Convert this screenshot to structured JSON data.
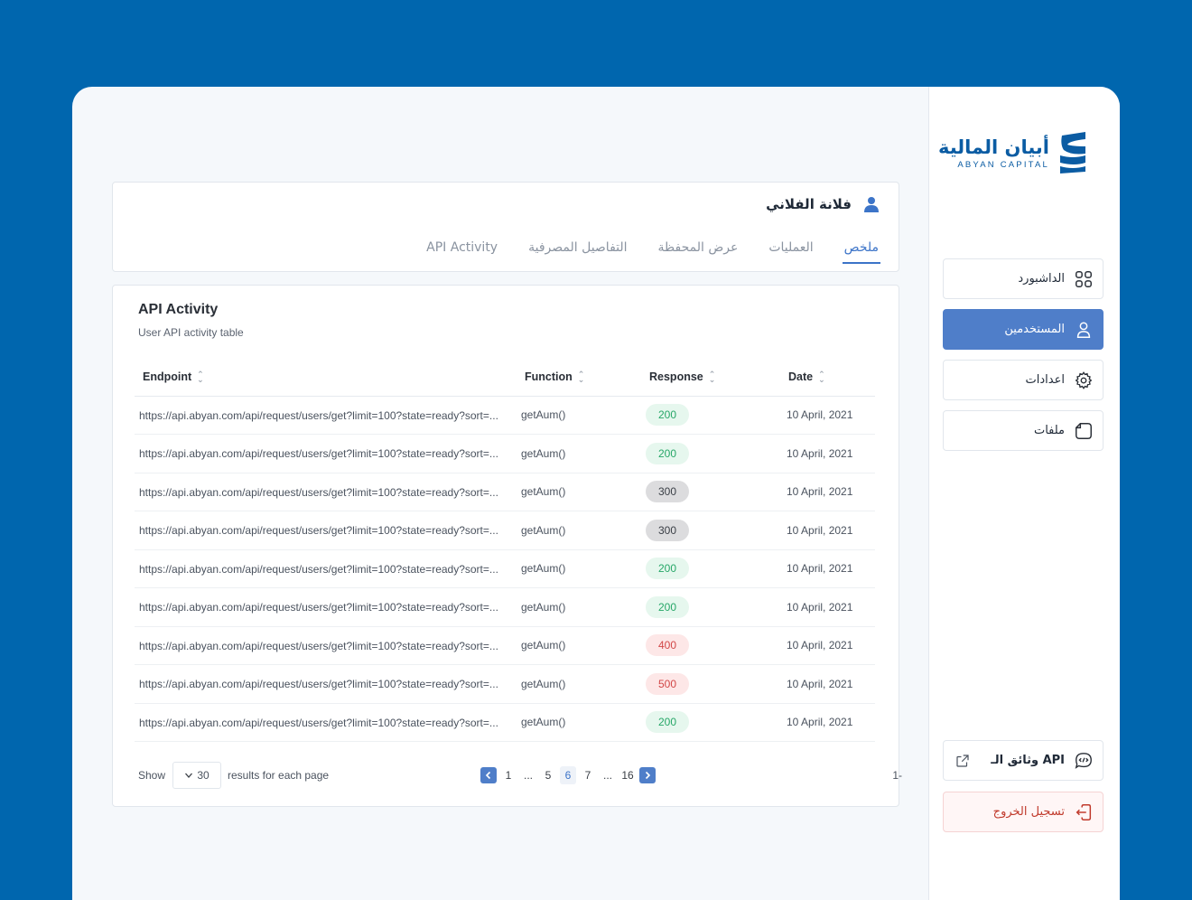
{
  "brand": {
    "name_ar": "أبيان المالية",
    "name_en": "ABYAN CAPITAL",
    "color": "#0B5CA3"
  },
  "sidebar": {
    "items": [
      {
        "label": "الداشبورد",
        "icon": "grid-icon",
        "active": false
      },
      {
        "label": "المستخدمين",
        "icon": "user-icon",
        "active": true
      },
      {
        "label": "اعدادات",
        "icon": "gear-icon",
        "active": false
      },
      {
        "label": "ملفات",
        "icon": "file-icon",
        "active": false
      }
    ],
    "api_docs": {
      "label": "وثائق الـ API",
      "icon": "code-chat-icon",
      "ext_icon": "external-link-icon"
    },
    "logout": {
      "label": "تسجيل الخروج",
      "icon": "logout-icon"
    }
  },
  "profile": {
    "name": "فلانة الفلاني",
    "tabs": [
      {
        "label": "ملخص",
        "active": true
      },
      {
        "label": "العمليات",
        "active": false
      },
      {
        "label": "عرض المحفظة",
        "active": false
      },
      {
        "label": "التفاصيل المصرفية",
        "active": false
      },
      {
        "label": "API Activity",
        "active": false
      }
    ]
  },
  "activity": {
    "title": "API Activity",
    "subtitle": "User API activity table",
    "columns": [
      "Endpoint",
      "Function",
      "Response",
      "Date"
    ],
    "rows": [
      {
        "endpoint": "https://api.abyan.com/api/request/users/get?limit=100?state=ready?sort=...",
        "function": "getAum()",
        "response": "200",
        "date": "10 April, 2021"
      },
      {
        "endpoint": "https://api.abyan.com/api/request/users/get?limit=100?state=ready?sort=...",
        "function": "getAum()",
        "response": "200",
        "date": "10 April, 2021"
      },
      {
        "endpoint": "https://api.abyan.com/api/request/users/get?limit=100?state=ready?sort=...",
        "function": "getAum()",
        "response": "300",
        "date": "10 April, 2021"
      },
      {
        "endpoint": "https://api.abyan.com/api/request/users/get?limit=100?state=ready?sort=...",
        "function": "getAum()",
        "response": "300",
        "date": "10 April, 2021"
      },
      {
        "endpoint": "https://api.abyan.com/api/request/users/get?limit=100?state=ready?sort=...",
        "function": "getAum()",
        "response": "200",
        "date": "10 April, 2021"
      },
      {
        "endpoint": "https://api.abyan.com/api/request/users/get?limit=100?state=ready?sort=...",
        "function": "getAum()",
        "response": "200",
        "date": "10 April, 2021"
      },
      {
        "endpoint": "https://api.abyan.com/api/request/users/get?limit=100?state=ready?sort=...",
        "function": "getAum()",
        "response": "400",
        "date": "10 April, 2021"
      },
      {
        "endpoint": "https://api.abyan.com/api/request/users/get?limit=100?state=ready?sort=...",
        "function": "getAum()",
        "response": "500",
        "date": "10 April, 2021"
      },
      {
        "endpoint": "https://api.abyan.com/api/request/users/get?limit=100?state=ready?sort=...",
        "function": "getAum()",
        "response": "200",
        "date": "10 April, 2021"
      }
    ],
    "footer": {
      "show_label": "Show",
      "per_page": "30",
      "results_label": "results for each page",
      "pages": [
        "1",
        "...",
        "5",
        "6",
        "7",
        "...",
        "16"
      ],
      "current_page": "6",
      "cut_text": "1-"
    }
  },
  "colors": {
    "accent": "#4F7EC9",
    "background": "#0066AE",
    "ok": "#27A768",
    "error": "#D24747"
  }
}
